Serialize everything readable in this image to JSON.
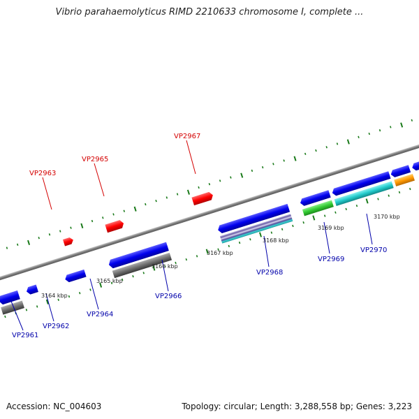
{
  "title": "Vibrio parahaemolyticus RIMD 2210633 chromosome I, complete ...",
  "footer": {
    "accession": "Accession: NC_004603",
    "summary": "Topology: circular; Length: 3,288,558 bp; Genes: 3,223"
  },
  "ticks": [
    "3164 kbp",
    "3165 kbp",
    "3166 kbp",
    "3167 kbp",
    "3168 kbp",
    "3169 kbp",
    "3170 kbp"
  ],
  "genes_top": [
    "VP2963",
    "VP2965",
    "VP2967"
  ],
  "genes_bottom": [
    "VP2961",
    "VP2962",
    "VP2964",
    "VP2966",
    "VP2968",
    "VP2969",
    "VP2970"
  ],
  "colors": {
    "backbone": "#8a8a8a",
    "tick": "#1a7a1a",
    "gene_top": "#ff0000",
    "gene_bottom": "#0000ee",
    "label_top": "#d40000",
    "label_bottom": "#0000aa",
    "grey_feature": "#6e6e6e",
    "green_feature": "#33cc33",
    "cyan_feature": "#22cccc",
    "orange_feature": "#ff9900",
    "striped_feature": "#8866aa"
  }
}
